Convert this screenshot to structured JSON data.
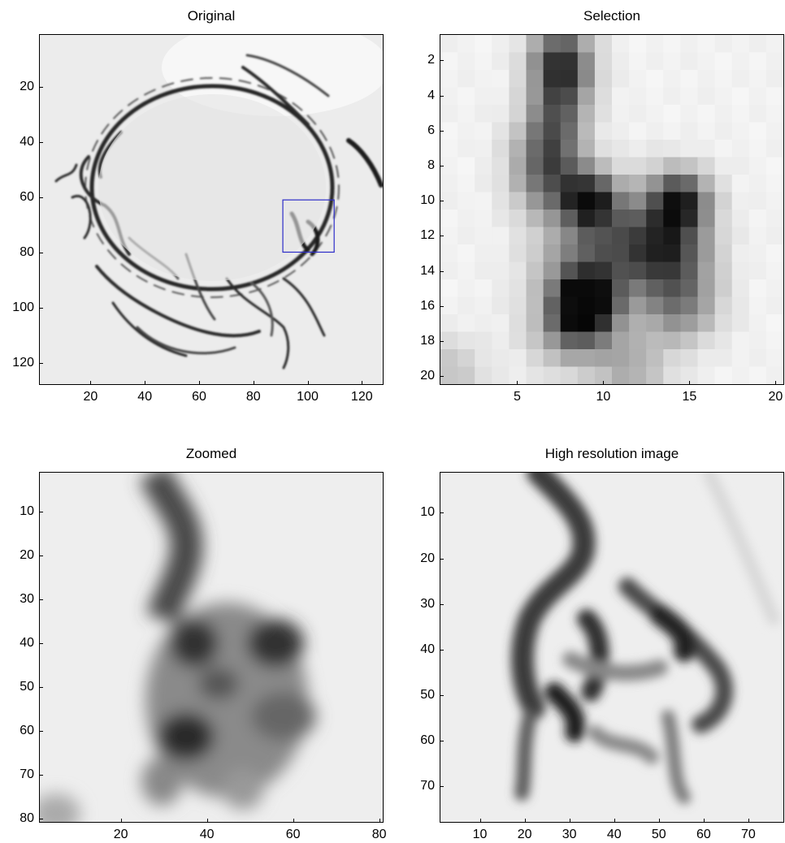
{
  "chart_data": [
    {
      "type": "heatmap",
      "title": "Original",
      "xlim": [
        1,
        128
      ],
      "ylim": [
        1,
        128
      ],
      "xticks": [
        20,
        40,
        60,
        80,
        100,
        120
      ],
      "yticks": [
        20,
        40,
        60,
        80,
        100,
        120
      ],
      "colormap": "gray",
      "annotations": [
        {
          "type": "rectangle",
          "color": "#2c2cc8",
          "x": [
            91,
            110
          ],
          "y": [
            61,
            80
          ]
        }
      ]
    },
    {
      "type": "heatmap",
      "title": "Selection",
      "xlim": [
        0.5,
        20.5
      ],
      "ylim": [
        0.5,
        20.5
      ],
      "xticks": [
        5,
        10,
        15,
        20
      ],
      "yticks": [
        2,
        4,
        6,
        8,
        10,
        12,
        14,
        16,
        18,
        20
      ],
      "colormap": "gray"
    },
    {
      "type": "heatmap",
      "title": "Zoomed",
      "xlim": [
        1,
        81
      ],
      "ylim": [
        1,
        81
      ],
      "xticks": [
        20,
        40,
        60,
        80
      ],
      "yticks": [
        10,
        20,
        30,
        40,
        50,
        60,
        70,
        80
      ],
      "colormap": "gray"
    },
    {
      "type": "heatmap",
      "title": "High resolution image",
      "xlim": [
        1,
        78
      ],
      "ylim": [
        1,
        78
      ],
      "xticks": [
        10,
        20,
        30,
        40,
        50,
        60,
        70
      ],
      "yticks": [
        10,
        20,
        30,
        40,
        50,
        60,
        70
      ],
      "colormap": "gray"
    }
  ]
}
